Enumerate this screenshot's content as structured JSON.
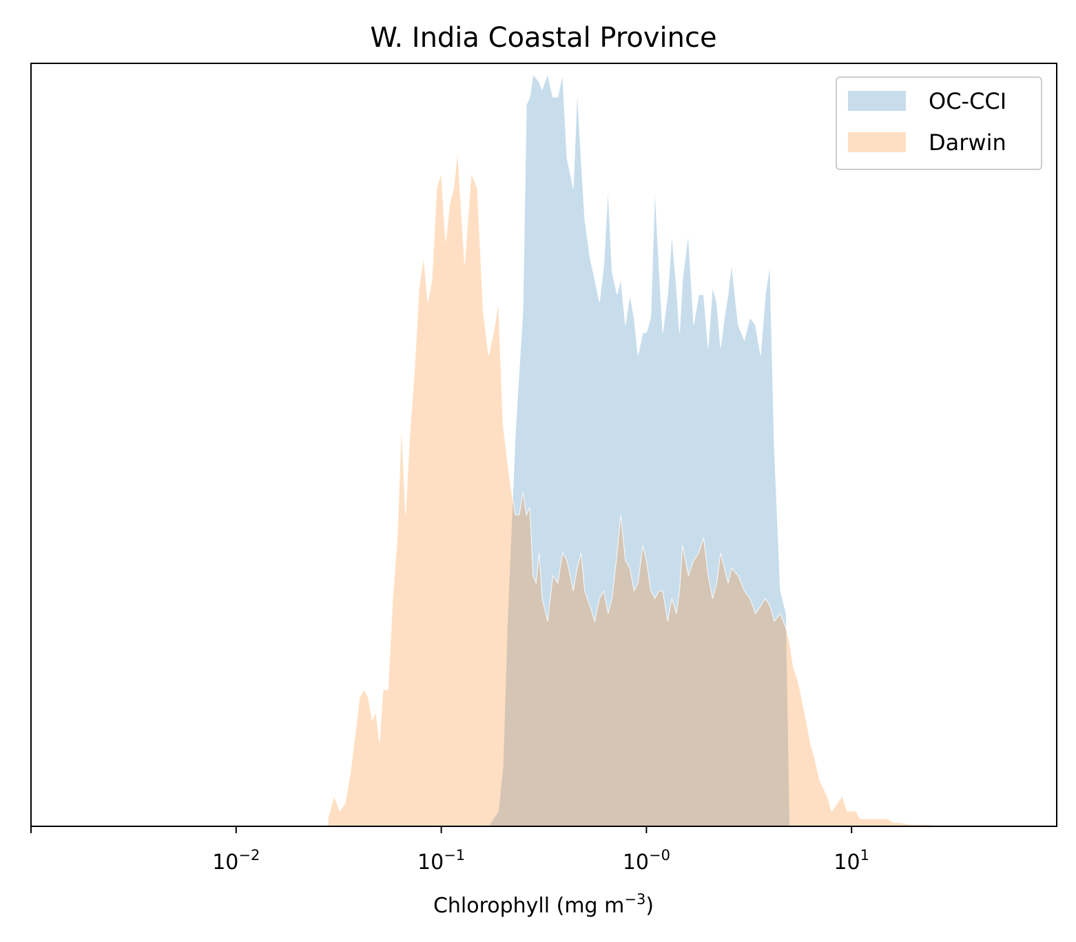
{
  "chart_data": {
    "type": "area",
    "title": "W. India Coastal Province",
    "xlabel": "Chlorophyll  (mg m",
    "xlabel_sup": "−3",
    "xlabel_close": ")",
    "x_scale": "log",
    "xlim": [
      0.001,
      100
    ],
    "ylim": [
      0,
      1
    ],
    "y_ticks_shown": false,
    "grid": false,
    "legend_position": "upper right",
    "x_ticks": [
      {
        "value": 0.01,
        "base": "10",
        "exp": "−2"
      },
      {
        "value": 0.1,
        "base": "10",
        "exp": "−1"
      },
      {
        "value": 1,
        "base": "10",
        "exp": "−0"
      },
      {
        "value": 10,
        "base": "10",
        "exp": "1"
      }
    ],
    "series": [
      {
        "name": "OC-CCI",
        "color": "#c6dcec",
        "x": [
          0.17,
          0.19,
          0.2,
          0.21,
          0.23,
          0.25,
          0.26,
          0.27,
          0.28,
          0.3,
          0.31,
          0.33,
          0.35,
          0.37,
          0.39,
          0.41,
          0.44,
          0.46,
          0.48,
          0.5,
          0.53,
          0.56,
          0.59,
          0.62,
          0.65,
          0.68,
          0.72,
          0.75,
          0.79,
          0.83,
          0.87,
          0.91,
          0.96,
          1.0,
          1.05,
          1.1,
          1.15,
          1.2,
          1.27,
          1.33,
          1.4,
          1.45,
          1.5,
          1.6,
          1.7,
          1.8,
          1.9,
          2.0,
          2.1,
          2.2,
          2.3,
          2.4,
          2.5,
          2.6,
          2.8,
          3.0,
          3.2,
          3.4,
          3.6,
          3.8,
          4.0,
          4.2,
          4.5,
          4.8,
          5.0,
          5.5,
          6.0,
          6.5,
          7.0,
          7.5,
          8.0,
          8.5,
          9.0,
          9.5,
          10.0,
          10.5,
          11,
          12,
          13,
          14,
          15,
          16,
          17,
          18,
          19,
          20,
          22,
          24,
          26,
          28,
          30,
          33,
          36
        ],
        "values": [
          0.0,
          0.02,
          0.08,
          0.27,
          0.52,
          0.68,
          0.95,
          0.96,
          0.99,
          0.98,
          0.97,
          0.99,
          0.96,
          0.96,
          0.99,
          0.88,
          0.84,
          0.97,
          0.88,
          0.8,
          0.75,
          0.72,
          0.69,
          0.74,
          0.84,
          0.73,
          0.7,
          0.72,
          0.66,
          0.7,
          0.67,
          0.62,
          0.65,
          0.65,
          0.67,
          0.84,
          0.74,
          0.65,
          0.7,
          0.78,
          0.71,
          0.65,
          0.72,
          0.78,
          0.66,
          0.7,
          0.7,
          0.63,
          0.71,
          0.69,
          0.63,
          0.67,
          0.7,
          0.74,
          0.66,
          0.64,
          0.67,
          0.66,
          0.62,
          0.7,
          0.74,
          0.5,
          0.31,
          0.28,
          0.0,
          0.0,
          0.0,
          0.0,
          0.0,
          0.0,
          0.0,
          0.0,
          0.0,
          0.0,
          0.0,
          0.0,
          0.0,
          0.0,
          0.0,
          0.0,
          0.0,
          0.0,
          0.0,
          0.0,
          0.0,
          0.0,
          0.0,
          0.0,
          0.0,
          0.0,
          0.0,
          0.0,
          0.0
        ]
      },
      {
        "name": "Darwin",
        "color": "#fddfc3",
        "x": [
          0.028,
          0.03,
          0.032,
          0.034,
          0.036,
          0.038,
          0.04,
          0.042,
          0.044,
          0.046,
          0.048,
          0.05,
          0.052,
          0.055,
          0.058,
          0.061,
          0.064,
          0.067,
          0.07,
          0.074,
          0.078,
          0.082,
          0.086,
          0.09,
          0.095,
          0.1,
          0.105,
          0.11,
          0.115,
          0.12,
          0.13,
          0.14,
          0.15,
          0.16,
          0.17,
          0.18,
          0.19,
          0.2,
          0.21,
          0.22,
          0.23,
          0.24,
          0.25,
          0.26,
          0.27,
          0.28,
          0.29,
          0.3,
          0.31,
          0.33,
          0.35,
          0.37,
          0.39,
          0.41,
          0.44,
          0.46,
          0.48,
          0.5,
          0.53,
          0.56,
          0.59,
          0.62,
          0.65,
          0.68,
          0.72,
          0.75,
          0.79,
          0.83,
          0.87,
          0.91,
          0.96,
          1.0,
          1.05,
          1.1,
          1.15,
          1.2,
          1.27,
          1.33,
          1.4,
          1.45,
          1.5,
          1.6,
          1.7,
          1.8,
          1.9,
          2.0,
          2.1,
          2.2,
          2.3,
          2.4,
          2.5,
          2.6,
          2.8,
          3.0,
          3.2,
          3.4,
          3.6,
          3.8,
          4.0,
          4.2,
          4.5,
          4.8,
          5.0,
          5.2,
          5.5,
          5.8,
          6.0,
          6.3,
          6.6,
          7.0,
          7.3,
          7.6,
          8.0,
          8.5,
          9.0,
          9.5,
          10.0,
          10.5,
          11,
          12,
          13,
          14,
          15,
          16,
          17,
          18,
          19,
          20,
          22,
          24,
          26,
          28,
          30,
          33,
          36,
          40
        ],
        "values": [
          0.01,
          0.04,
          0.02,
          0.03,
          0.07,
          0.12,
          0.17,
          0.18,
          0.17,
          0.14,
          0.15,
          0.11,
          0.18,
          0.18,
          0.3,
          0.38,
          0.53,
          0.41,
          0.51,
          0.6,
          0.71,
          0.75,
          0.69,
          0.72,
          0.84,
          0.86,
          0.77,
          0.82,
          0.84,
          0.89,
          0.74,
          0.86,
          0.84,
          0.68,
          0.62,
          0.65,
          0.69,
          0.53,
          0.48,
          0.44,
          0.41,
          0.41,
          0.44,
          0.41,
          0.42,
          0.33,
          0.32,
          0.36,
          0.3,
          0.27,
          0.33,
          0.32,
          0.36,
          0.35,
          0.31,
          0.34,
          0.36,
          0.31,
          0.29,
          0.27,
          0.3,
          0.31,
          0.28,
          0.3,
          0.36,
          0.41,
          0.35,
          0.34,
          0.31,
          0.32,
          0.37,
          0.35,
          0.31,
          0.3,
          0.31,
          0.31,
          0.27,
          0.3,
          0.28,
          0.31,
          0.37,
          0.33,
          0.35,
          0.36,
          0.38,
          0.33,
          0.3,
          0.32,
          0.36,
          0.34,
          0.32,
          0.34,
          0.33,
          0.31,
          0.3,
          0.28,
          0.29,
          0.3,
          0.29,
          0.27,
          0.28,
          0.26,
          0.24,
          0.21,
          0.19,
          0.16,
          0.14,
          0.11,
          0.09,
          0.06,
          0.05,
          0.04,
          0.02,
          0.03,
          0.04,
          0.02,
          0.02,
          0.02,
          0.01,
          0.01,
          0.01,
          0.01,
          0.01,
          0.005,
          0.005,
          0.004,
          0.003,
          0.002,
          0.002,
          0.002,
          0.0,
          0.0,
          0.0,
          0.0,
          0.0,
          0.0
        ]
      }
    ]
  }
}
